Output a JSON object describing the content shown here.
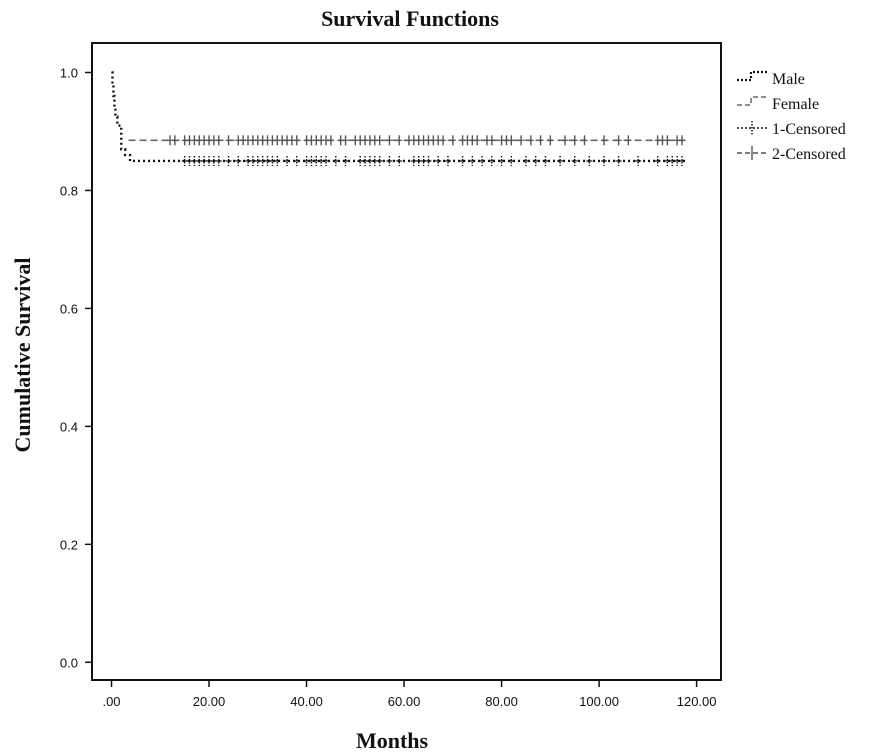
{
  "chart_data": {
    "type": "line",
    "title": "Survival Functions",
    "xlabel": "Months",
    "ylabel": "Cumulative Survival",
    "xlim": [
      -4,
      125
    ],
    "ylim": [
      -0.03,
      1.05
    ],
    "x_ticks": [
      0,
      20,
      40,
      60,
      80,
      100,
      120
    ],
    "x_tick_labels": [
      ".00",
      "20.00",
      "40.00",
      "60.00",
      "80.00",
      "100.00",
      "120.00"
    ],
    "y_ticks": [
      0,
      0.2,
      0.4,
      0.6,
      0.8,
      1.0
    ],
    "y_tick_labels": [
      "0.0",
      "0.2",
      "0.4",
      "0.6",
      "0.8",
      "1.0"
    ],
    "grid": false,
    "legend_position": "right",
    "legend": [
      "Male",
      "Female",
      "1-Censored",
      "2-Censored"
    ],
    "series": [
      {
        "name": "Male",
        "style": "dotted",
        "steps": [
          [
            0,
            1.0
          ],
          [
            0.2,
            0.98
          ],
          [
            0.4,
            0.96
          ],
          [
            0.6,
            0.94
          ],
          [
            0.8,
            0.925
          ],
          [
            1.2,
            0.91
          ],
          [
            2.0,
            0.87
          ],
          [
            2.8,
            0.86
          ],
          [
            3.8,
            0.85
          ],
          [
            118,
            0.85
          ]
        ],
        "censored_label": "1-Censored",
        "censored_y": 0.85,
        "censored_x": [
          15,
          16,
          17,
          18,
          19,
          20,
          21,
          22,
          24,
          26,
          28,
          29,
          30,
          31,
          32,
          33,
          34,
          36,
          38,
          40,
          41,
          42,
          43,
          44,
          46,
          48,
          51,
          52,
          53,
          54,
          55,
          57,
          59,
          62,
          63,
          64,
          65,
          67,
          69,
          72,
          74,
          76,
          78,
          80,
          82,
          85,
          87,
          89,
          92,
          95,
          98,
          101,
          104,
          108,
          112,
          114,
          115,
          116,
          117
        ]
      },
      {
        "name": "Female",
        "style": "dashed",
        "steps": [
          [
            3.5,
            0.885
          ],
          [
            118,
            0.885
          ]
        ],
        "censored_label": "2-Censored",
        "censored_y": 0.885,
        "censored_x": [
          12,
          13,
          15,
          16,
          17,
          18,
          19,
          20,
          21,
          22,
          24,
          26,
          27,
          28,
          29,
          30,
          31,
          32,
          33,
          34,
          35,
          36,
          37,
          38,
          40,
          41,
          42,
          43,
          44,
          45,
          47,
          48,
          50,
          51,
          52,
          53,
          54,
          55,
          57,
          59,
          61,
          62,
          63,
          64,
          65,
          66,
          67,
          68,
          70,
          72,
          73,
          74,
          75,
          77,
          78,
          80,
          81,
          82,
          84,
          86,
          88,
          90,
          93,
          95,
          97,
          101,
          104,
          106,
          112,
          113,
          114,
          116,
          117
        ]
      }
    ]
  }
}
